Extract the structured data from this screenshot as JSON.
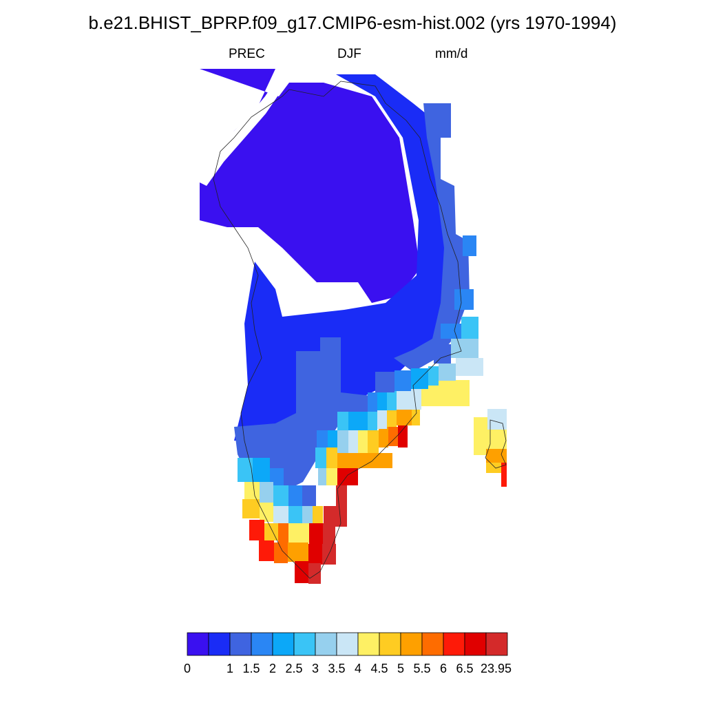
{
  "title": "b.e21.BHIST_BPRP.f09_g17.CMIP6-esm-hist.002 (yrs 1970-1994)",
  "subtitle": {
    "variable": "PREC",
    "season": "DJF",
    "units": "mm/d"
  },
  "colorbar": {
    "colors": [
      "#3a10f0",
      "#1a2cf6",
      "#3f64e0",
      "#2a86f4",
      "#0ca8f8",
      "#3ac4f6",
      "#96d0ee",
      "#cae6f6",
      "#fef064",
      "#fecc22",
      "#fea000",
      "#fe6c00",
      "#fe1a08",
      "#e00000",
      "#d42a2a"
    ],
    "labels": [
      "0",
      "",
      "1",
      "1.5",
      "2",
      "2.5",
      "3",
      "3.5",
      "4",
      "4.5",
      "5",
      "5.5",
      "6",
      "6.5",
      "23.95"
    ]
  }
}
